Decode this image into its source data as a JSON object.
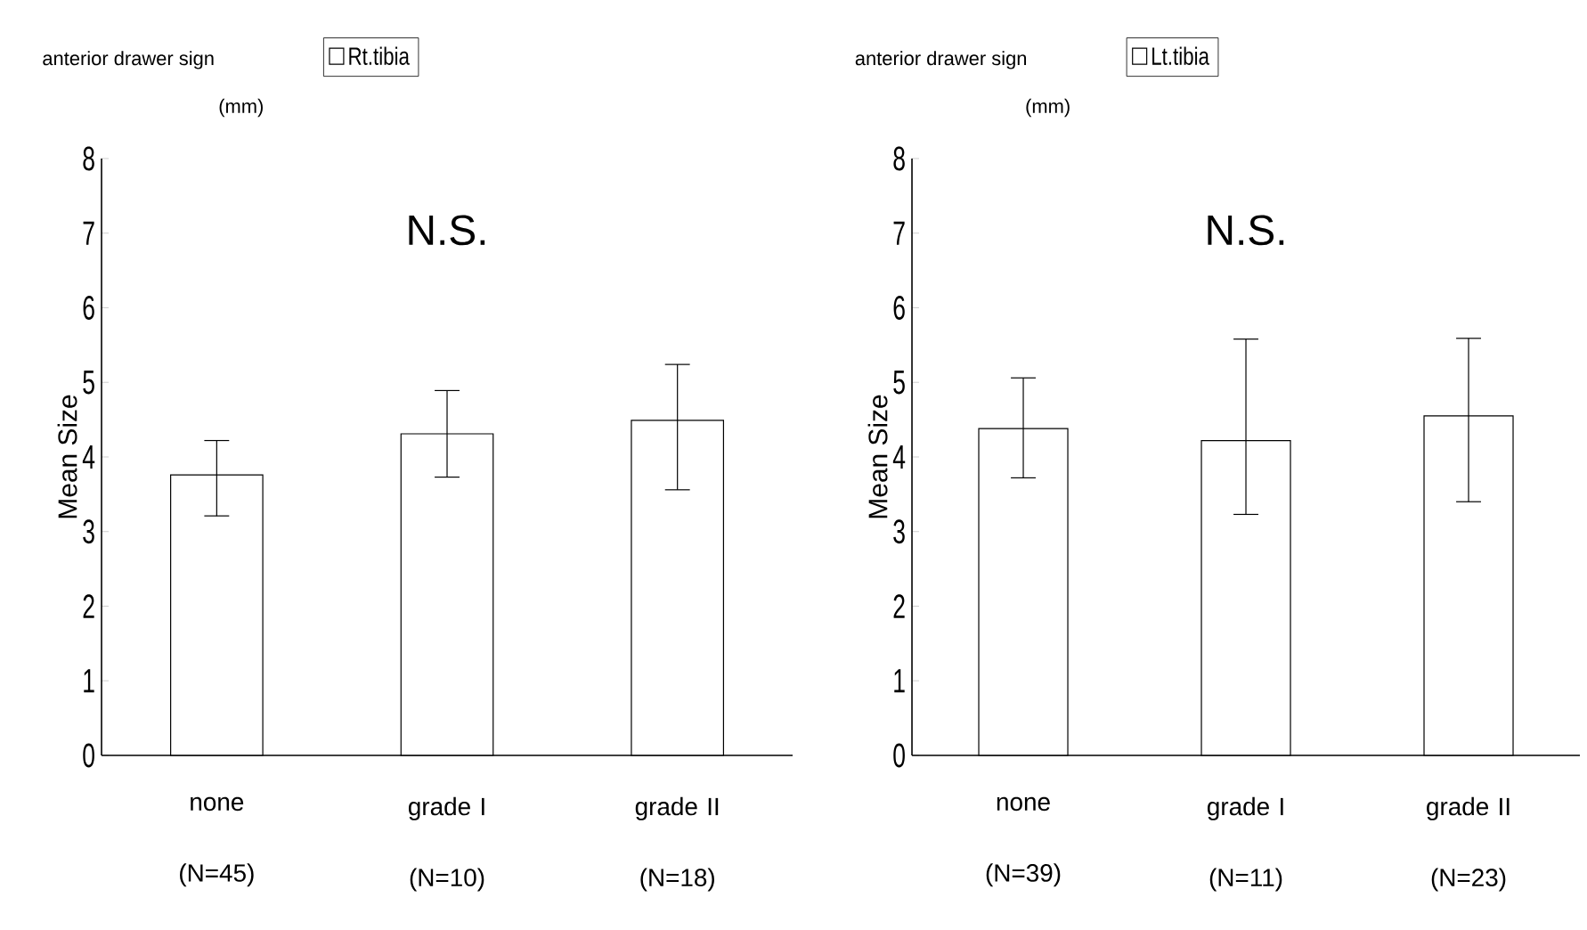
{
  "chart_data": [
    {
      "type": "bar",
      "title": "anterior drawer sign",
      "subtitle": "(mm)",
      "ylabel": "Mean Size",
      "categories": [
        "none (N=45)",
        "grade I (N=10)",
        "grade II (N=18)"
      ],
      "series": [
        {
          "name": "Rt.tibia",
          "color": "#ffffff",
          "values": [
            3.76,
            4.31,
            4.49
          ],
          "errors": [
            [
              3.21,
              4.22
            ],
            [
              3.73,
              4.89
            ],
            [
              3.56,
              5.24
            ]
          ]
        }
      ],
      "ylim": [
        0,
        8
      ],
      "yticks": [
        0,
        1,
        2,
        3,
        4,
        5,
        6,
        7,
        8
      ],
      "legend": "top",
      "annotations": [
        "N.S."
      ]
    },
    {
      "type": "bar",
      "title": "anterior drawer sign",
      "subtitle": "(mm)",
      "ylabel": "Mean Size",
      "categories": [
        "none (N=39)",
        "grade I (N=11)",
        "grade II (N=23)"
      ],
      "series": [
        {
          "name": "Lt.tibia",
          "color": "#ffffff",
          "values": [
            4.38,
            4.22,
            4.55
          ],
          "errors": [
            [
              3.72,
              5.06
            ],
            [
              3.23,
              5.58
            ],
            [
              3.4,
              5.59
            ]
          ]
        }
      ],
      "ylim": [
        0,
        8
      ],
      "yticks": [
        0,
        1,
        2,
        3,
        4,
        5,
        6,
        7,
        8
      ],
      "legend": "top",
      "annotations": [
        "N.S."
      ]
    }
  ]
}
